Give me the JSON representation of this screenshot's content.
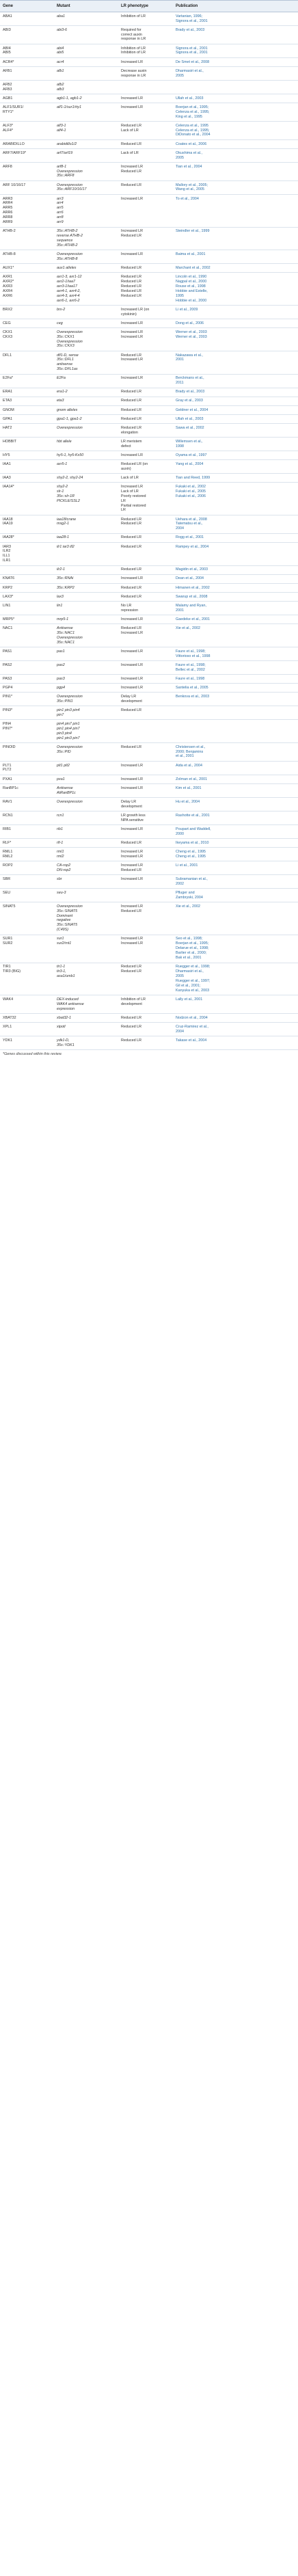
{
  "headers": {
    "gene": "Gene",
    "mutant": "Mutant",
    "lr_phenotype": "LR phenotype",
    "publication": "Publication"
  },
  "rows": [
    {
      "gene": "ABA1",
      "mutant": "aba1",
      "lr": "Inhibition of LR",
      "pub": "Vartanian, 1996;\nSignora et al., 2001"
    },
    {
      "gene": "ABI3",
      "mutant": "abi3-6",
      "lr": "Required for\ncorrect auxin\nresponse in LR",
      "pub": "Brady et al., 2003"
    },
    {
      "gene": "ABI4\nABI5",
      "mutant": "abi4\nabi5",
      "lr": "Inhibition of LR\nInhibition of LR",
      "pub": "Signora et al., 2001\nSignora et al., 2001"
    },
    {
      "gene": "ACR4*",
      "mutant": "acr4",
      "lr": "Increased LR",
      "pub": "De Smet et al., 2008"
    },
    {
      "gene": "AFB1",
      "mutant": "afb1",
      "lr": "Decrease auxin\nresponse in LR",
      "pub": "Dharmasiri et al.,\n2005"
    },
    {
      "gene": "AFB2\nAFB3",
      "mutant": "afb2\nafb3",
      "lr": "",
      "pub": ""
    },
    {
      "gene": "AGB1",
      "mutant": "agb1-1, agb1-2",
      "lr": "Increased LR",
      "pub": "Ullah et al., 2003"
    },
    {
      "gene": "ALF1/SUR1/\nRTY1*",
      "mutant": "alf1-1/sur1/rty1",
      "lr": "Increased LR",
      "pub": "Boerjan et al., 1995;\nCelenza et al., 1995;\nKing et al., 1995"
    },
    {
      "gene": "ALF3*\nALF4*",
      "mutant": "alf3-1\nalf4-1",
      "lr": "Reduced LR\nLack of LR",
      "pub": "Celenza et al., 1995\nCelenza et al., 1995;\nDiDonato et al., 2004"
    },
    {
      "gene": "ARABIDILLO",
      "mutant": "arabidillo1/2",
      "lr": "Reduced LR",
      "pub": "Coates et al., 2006"
    },
    {
      "gene": "ARF7/ARF19*",
      "mutant": "arf7/arf19",
      "lr": "Lack of LR",
      "pub": "Okushima et al.,\n2005"
    },
    {
      "gene": "ARF8",
      "mutant": "arf8-1\nOverexpression\n35s::ARF8",
      "lr": "Increased LR\nReduced LR",
      "pub": "Tian et al., 2004"
    },
    {
      "gene": "ARF 10/16/17",
      "mutant": "Overexpression\n35s::ARF10/16/17",
      "lr": "Reduced LR",
      "pub": "Mallory et al., 2005;\nWang et al., 2005"
    },
    {
      "gene": "ARR3\nARR4\nARR5\nARR6\nARR8\nARR9",
      "mutant": "arr3\narr4\narr5\narr6\narr8\narr9",
      "lr": "Increased LR",
      "pub": "To et al., 2004"
    },
    {
      "gene": "ATHB-2",
      "mutant": "35s::ATHB-2\nreverse ATHB-2\nsequence\n35s::ATHB-2",
      "lr": "Increased LR\nReduced LR",
      "pub": "Steindler et al., 1999"
    },
    {
      "gene": "ATHB-8",
      "mutant": "Overexpression\n35s::ATHB-8",
      "lr": "Increased LR",
      "pub": "Baima et al., 2001"
    },
    {
      "gene": "AUX1*",
      "mutant": "aux1 alleles",
      "lr": "Reduced LR",
      "pub": "Marchant et al., 2002"
    },
    {
      "gene": "AXR1\nAXR2*\nAXR3\nAXR4\nAXR6",
      "mutant": "axr1-3, axr1-12\naxr2-1/iaa7\naxr3-1/iaa17\naxr4-1, axr4-2,\naxr4-3, axr4-4\naxr6-1, axr6-2",
      "lr": "Reduced LR\nReduced LR\nReduced LR\nReduced LR\nReduced LR",
      "pub": "Lincoln et al., 1990\nNagpal et al., 2000\nRouse et al., 1998\nHobbie and Estelle,\n1995\nHobbie et al., 2000"
    },
    {
      "gene": "BRX2",
      "mutant": "brx-2",
      "lr": "Increased LR (on\ncytokinin)",
      "pub": "Li et al., 2009"
    },
    {
      "gene": "CEG",
      "mutant": "ceg",
      "lr": "Increased LR",
      "pub": "Dong et al., 2006"
    },
    {
      "gene": "CKX1\nCKX3",
      "mutant": "Overexpression\n35s::CKX1\nOverexpression\n35s::CKX3",
      "lr": "Increased LR\nIncreased LR",
      "pub": "Werner et al., 2003\nWerner et al., 2003"
    },
    {
      "gene": "DFL1",
      "mutant": "dfl1-D, sense\n35s::DFL1\nantisense\n35s::DFL1as",
      "lr": "Reduced LR\nIncreased LR",
      "pub": "Nakazawa et al.,\n2001"
    },
    {
      "gene": "E2Fa*",
      "mutant": "E2Fa",
      "lr": "Increased LR",
      "pub": "Berckmans et al.,\n2011"
    },
    {
      "gene": "ERA1",
      "mutant": "era1-2",
      "lr": "Reduced LR",
      "pub": "Brady et al., 2003"
    },
    {
      "gene": "ETA3",
      "mutant": "eta3",
      "lr": "Reduced LR",
      "pub": "Gray et al., 2003"
    },
    {
      "gene": "GNOM",
      "mutant": "gnom alleles",
      "lr": "Reduced LR",
      "pub": "Geldner et al., 2004"
    },
    {
      "gene": "GPA1",
      "mutant": "gpa1-1, gpa1-2",
      "lr": "Reduced LR",
      "pub": "Ullah et al., 2003"
    },
    {
      "gene": "HAT2",
      "mutant": "Overexpression",
      "lr": "Reduced LR\nelongation",
      "pub": "Sawa et al., 2002"
    },
    {
      "gene": "HOBBIT",
      "mutant": "hbt allele",
      "lr": "LR meristem\ndefect",
      "pub": "Willemsen et al.,\n1998"
    },
    {
      "gene": "HY5",
      "mutant": "hy5-1, hy5-Ks50",
      "lr": "Increased LR",
      "pub": "Oyama et al., 1997"
    },
    {
      "gene": "IAA1",
      "mutant": "axr5-1",
      "lr": "Reduced LR (on\nauxin)",
      "pub": "Yang et al., 2004"
    },
    {
      "gene": "IAA3",
      "mutant": "shy2-2, shy2-24",
      "lr": "Lack of LR",
      "pub": "Tian and Reed, 1999"
    },
    {
      "gene": "IAA14*",
      "mutant": "shy2-2\nslr-1\n35s::slr-1R\nPICKLE/SSL2",
      "lr": "Increased LR\nLack of LR\nPoorly restored\nLR\nPartial restored\nLR",
      "pub": "Fukaki et al., 2002\nFukaki et al., 2005\nFukaki et al., 2006"
    },
    {
      "gene": "IAA18\nIAA19",
      "mutant": "iaa18/crane\nmsg2-1",
      "lr": "Reduced LR\nReduced LR",
      "pub": "Uehara et al., 2008\nTatematsu et al.,\n2004"
    },
    {
      "gene": "IAA28*",
      "mutant": "iaa28-1",
      "lr": "Reduced LR",
      "pub": "Rogg et al., 2001"
    },
    {
      "gene": "IAR3\nILR2\nILL1\nILR1",
      "mutant": "ilr1 iar3 ill2",
      "lr": "Reduced LR",
      "pub": "Rampey et al., 2004"
    },
    {
      "gene": "",
      "mutant": "ilr2-1",
      "lr": "Reduced LR",
      "pub": "Magidin et al., 2003"
    },
    {
      "gene": "KNAT6",
      "mutant": "35s::RNAi",
      "lr": "Increased LR",
      "pub": "Dean et al., 2004"
    },
    {
      "gene": "KRP2",
      "mutant": "35s::KRP2",
      "lr": "Reduced LR",
      "pub": "Himanen et al., 2002"
    },
    {
      "gene": "LAX3*",
      "mutant": "lax3",
      "lr": "Reduced LR",
      "pub": "Swarup et al., 2008"
    },
    {
      "gene": "LIN1",
      "mutant": "lin1",
      "lr": "No LR\nrepression",
      "pub": "Malamy and Ryan,\n2001"
    },
    {
      "gene": "MRP5*",
      "mutant": "mrp5-1",
      "lr": "Increased LR",
      "pub": "Gaedeke et al., 2001"
    },
    {
      "gene": "NAC1",
      "mutant": "Antisense\n35s::NAC1\nOverexpression\n35s::NAC1",
      "lr": "Reduced LR\nIncreased LR",
      "pub": "Xie et al., 2002"
    },
    {
      "gene": "PAS1",
      "mutant": "pas1",
      "lr": "Increased LR",
      "pub": "Faure et al., 1998;\nVittorioso et al., 1998"
    },
    {
      "gene": "PAS2",
      "mutant": "pas2",
      "lr": "Increased LR",
      "pub": "Faure et al., 1998;\nBellec et al., 2002"
    },
    {
      "gene": "PAS3",
      "mutant": "pas3",
      "lr": "Increased LR",
      "pub": "Faure et al., 1998"
    },
    {
      "gene": "PGP4",
      "mutant": "pgp4",
      "lr": "Increased LR",
      "pub": "Santelia et al., 2005"
    },
    {
      "gene": "PIN1*",
      "mutant": "Overexpression\n35s::PIN1",
      "lr": "Delay LR\ndevelopment",
      "pub": "Benkova et al., 2003"
    },
    {
      "gene": "PIN3*",
      "mutant": "pin1 pin3 pin4\npin7",
      "lr": "Reduced LR",
      "pub": ""
    },
    {
      "gene": "PIN4\nPIN7*",
      "mutant": "pin4 pin7 pin1\npin1 pin4 pin7\npin3 pin4\npin1 pin3 pin7",
      "lr": "",
      "pub": ""
    },
    {
      "gene": "PINOID",
      "mutant": "Overexpression\n35s::PID",
      "lr": "Reduced LR",
      "pub": "Christensen et al.,\n2000; Benjamins\net al., 2001"
    },
    {
      "gene": "PLT1\nPLT2",
      "mutant": "plt1 plt2",
      "lr": "Increased LR",
      "pub": "Aida et al., 2004"
    },
    {
      "gene": "PXA1",
      "mutant": "pxa1",
      "lr": "Increased LR",
      "pub": "Zolman et al., 2001"
    },
    {
      "gene": "RanBP1c",
      "mutant": "Antisense\nAtRanBP1c",
      "lr": "Increased LR",
      "pub": "Kim et al., 2001"
    },
    {
      "gene": "RAV1",
      "mutant": "Overexpression",
      "lr": "Delay LR\ndevelopment",
      "pub": "Hu et al., 2004"
    },
    {
      "gene": "RCN1",
      "mutant": "rcn1",
      "lr": "LR growth less\nNPA sensitive",
      "pub": "Rashotte et al., 2001"
    },
    {
      "gene": "RIB1",
      "mutant": "rib1",
      "lr": "Increased LR",
      "pub": "Poupart and Waddell,\n2000"
    },
    {
      "gene": "RLF*",
      "mutant": "rlf-1",
      "lr": "Reduced LR",
      "pub": "Ikeyama et al., 2010"
    },
    {
      "gene": "RML1\nRML2",
      "mutant": "rml1\nrml2",
      "lr": "Increased LR\nIncreased LR",
      "pub": "Cheng et al., 1995\nCheng et al., 1995"
    },
    {
      "gene": "ROP2",
      "mutant": "CA-rop2\nDN-rop2",
      "lr": "Increased LR\nReduced LR",
      "pub": "Li et al., 2001"
    },
    {
      "gene": "SBR",
      "mutant": "sbr",
      "lr": "Increased LR",
      "pub": "Subramanian et al.,\n2002"
    },
    {
      "gene": "SEU",
      "mutant": "seu-3",
      "lr": "",
      "pub": "Pfluger and\nZambryski, 2004"
    },
    {
      "gene": "SINAT5",
      "mutant": "Overexpression\n35s::SINAT5\nDominant\nnegative\n35s::SINAT5\n(C49S)",
      "lr": "Increased LR\nReduced LR",
      "pub": "Xie et al., 2002"
    },
    {
      "gene": "SUR1\nSUR2",
      "mutant": "sur1\nsur2/rnt1",
      "lr": "Increased LR\nIncreased LR",
      "pub": "Seo et al., 1998;\nBoerjan et al., 1995;\nDelarue et al., 1998;\nBarlier et al., 2000;\nBak et al., 2001"
    },
    {
      "gene": "TIR1\nTIR3 (BIG)",
      "mutant": "tir1-1\ntir3-1,\nasa1/umb1",
      "lr": "Reduced LR\nReduced LR",
      "pub": "Ruegger et al., 1998;\nDharmasiri et al.,\n2005\nRuegger et al., 1997;\nGil et al., 2001;\nKanyuka et al., 2003"
    },
    {
      "gene": "WAK4",
      "mutant": "DEX-induced\nWAK4 antisense\nexpression",
      "lr": "Inhibition of LR\ndevelopment",
      "pub": "Lally et al., 2001"
    },
    {
      "gene": "XBAT32",
      "mutant": "xbat32-1",
      "lr": "Reduced LR",
      "pub": "Nodzon et al., 2004"
    },
    {
      "gene": "XPL1",
      "mutant": "xipotl",
      "lr": "Reduced LR",
      "pub": "Cruz-Ramirez et al.,\n2004"
    },
    {
      "gene": "YDK1",
      "mutant": "ydk1-D,\n35s::YDK1",
      "lr": "Reduced LR",
      "pub": "Takase et al., 2004"
    }
  ],
  "footnote": "*Genes discussed within this review."
}
